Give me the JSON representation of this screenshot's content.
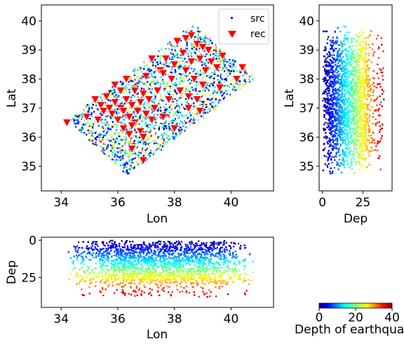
{
  "chart_data": [
    {
      "type": "scatter",
      "panel": "map",
      "xlabel": "Lon",
      "ylabel": "Lat",
      "xlim": [
        33.3,
        41.5
      ],
      "ylim": [
        34.15,
        40.55
      ],
      "xticks": [
        34,
        36,
        38,
        40
      ],
      "yticks": [
        35,
        36,
        37,
        38,
        39,
        40
      ],
      "legend": {
        "placement": "top-right",
        "entries": [
          "src",
          "rec"
        ]
      },
      "series": [
        {
          "name": "src",
          "marker": "dot",
          "color_by": "depth",
          "n_points": 9000
        },
        {
          "name": "rec",
          "marker": "triangle-down",
          "color": "#ff0000",
          "points": [
            [
              34.2,
              36.5
            ],
            [
              34.9,
              36.7
            ],
            [
              35.2,
              37.3
            ],
            [
              35.4,
              37.1
            ],
            [
              35.5,
              36.9
            ],
            [
              35.6,
              37.4
            ],
            [
              35.7,
              37.0
            ],
            [
              35.8,
              36.8
            ],
            [
              35.9,
              37.2
            ],
            [
              35.9,
              37.8
            ],
            [
              36.0,
              36.6
            ],
            [
              36.1,
              37.0
            ],
            [
              36.1,
              37.6
            ],
            [
              36.2,
              36.3
            ],
            [
              36.2,
              36.9
            ],
            [
              36.3,
              37.3
            ],
            [
              36.3,
              38.0
            ],
            [
              36.4,
              36.1
            ],
            [
              36.4,
              36.7
            ],
            [
              36.5,
              37.1
            ],
            [
              36.5,
              35.6
            ],
            [
              36.6,
              36.5
            ],
            [
              36.6,
              37.6
            ],
            [
              36.7,
              36.9
            ],
            [
              36.8,
              36.2
            ],
            [
              36.8,
              37.2
            ],
            [
              36.9,
              37.5
            ],
            [
              36.9,
              35.2
            ],
            [
              37.0,
              36.8
            ],
            [
              37.0,
              38.1
            ],
            [
              37.1,
              37.3
            ],
            [
              37.2,
              36.6
            ],
            [
              37.2,
              38.7
            ],
            [
              37.3,
              37.0
            ],
            [
              37.4,
              37.6
            ],
            [
              37.5,
              38.3
            ],
            [
              37.6,
              36.7
            ],
            [
              37.7,
              38.7
            ],
            [
              37.8,
              37.3
            ],
            [
              37.9,
              38.0
            ],
            [
              38.0,
              36.3
            ],
            [
              38.0,
              38.5
            ],
            [
              38.1,
              39.3
            ],
            [
              38.2,
              37.6
            ],
            [
              38.3,
              38.9
            ],
            [
              38.4,
              38.3
            ],
            [
              38.4,
              39.4
            ],
            [
              38.5,
              37.0
            ],
            [
              38.5,
              37.4
            ],
            [
              38.6,
              38.6
            ],
            [
              38.6,
              39.5
            ],
            [
              38.7,
              38.0
            ],
            [
              38.8,
              39.2
            ],
            [
              38.9,
              38.7
            ],
            [
              39.0,
              37.8
            ],
            [
              39.1,
              38.3
            ],
            [
              39.2,
              39.0
            ],
            [
              39.3,
              38.6
            ],
            [
              39.5,
              38.4
            ],
            [
              39.6,
              37.7
            ],
            [
              39.7,
              38.8
            ],
            [
              40.2,
              38.0
            ],
            [
              40.4,
              38.4
            ],
            [
              39.0,
              39.1
            ],
            [
              38.9,
              36.9
            ],
            [
              36.9,
              36.0
            ],
            [
              36.5,
              36.4
            ],
            [
              35.3,
              36.6
            ],
            [
              37.6,
              38.2
            ],
            [
              38.8,
              37.3
            ]
          ]
        }
      ]
    },
    {
      "type": "scatter",
      "panel": "depth-lat",
      "xlabel": "Dep",
      "ylabel": "Lat",
      "xlim": [
        -2,
        43
      ],
      "ylim": [
        34.15,
        40.55
      ],
      "xticks": [
        0,
        25
      ],
      "yticks": [
        35,
        36,
        37,
        38,
        39,
        40
      ],
      "color_by": "depth"
    },
    {
      "type": "scatter",
      "panel": "lon-depth",
      "xlabel": "Lon",
      "ylabel": "Dep",
      "xlim": [
        33.3,
        41.5
      ],
      "ylim": [
        45,
        -2
      ],
      "xticks": [
        34,
        36,
        38,
        40
      ],
      "yticks": [
        0,
        25
      ],
      "color_by": "depth"
    }
  ],
  "colorbar": {
    "label": "Depth of earthquak",
    "range": [
      0,
      40
    ],
    "ticks": [
      0,
      20,
      40
    ],
    "colormap": "jet"
  }
}
